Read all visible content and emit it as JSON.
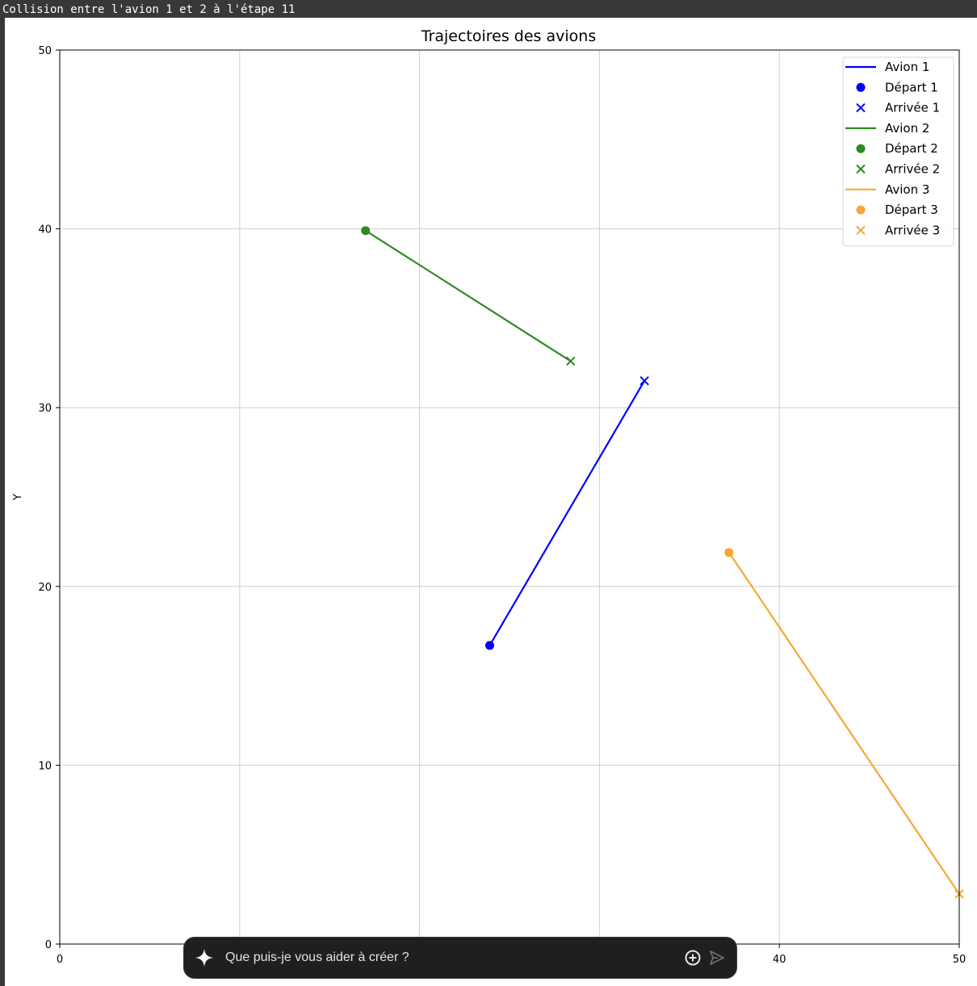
{
  "console": {
    "message": "Collision entre l'avion 1 et 2 à l'étape 11"
  },
  "prompt_bar": {
    "placeholder": "Que puis-je vous aider à créer ?",
    "icons": [
      "sparkle-icon",
      "add-circle-icon",
      "send-icon"
    ]
  },
  "chart_data": {
    "type": "line",
    "title": "Trajectoires des avions",
    "xlabel": "",
    "ylabel": "Y",
    "xlim": [
      0,
      50
    ],
    "ylim": [
      0,
      50
    ],
    "xticks": [
      "0",
      "10",
      "20",
      "30",
      "40",
      "50"
    ],
    "yticks": [
      "0",
      "10",
      "20",
      "30",
      "40",
      "50"
    ],
    "grid": true,
    "legend_position": "top-right",
    "series": [
      {
        "name": "Avion 1",
        "color": "#0000ff",
        "x": [
          23.9,
          32.5
        ],
        "y": [
          16.7,
          31.5
        ],
        "start_label": "Départ 1",
        "end_label": "Arrivée 1"
      },
      {
        "name": "Avion 2",
        "color": "#2e8b22",
        "x": [
          17.0,
          28.4
        ],
        "y": [
          39.9,
          32.6
        ],
        "start_label": "Départ 2",
        "end_label": "Arrivée 2"
      },
      {
        "name": "Avion 3",
        "color": "#f5a733",
        "x": [
          37.2,
          50.0
        ],
        "y": [
          21.9,
          2.8
        ],
        "start_label": "Départ 3",
        "end_label": "Arrivée 3"
      }
    ]
  }
}
